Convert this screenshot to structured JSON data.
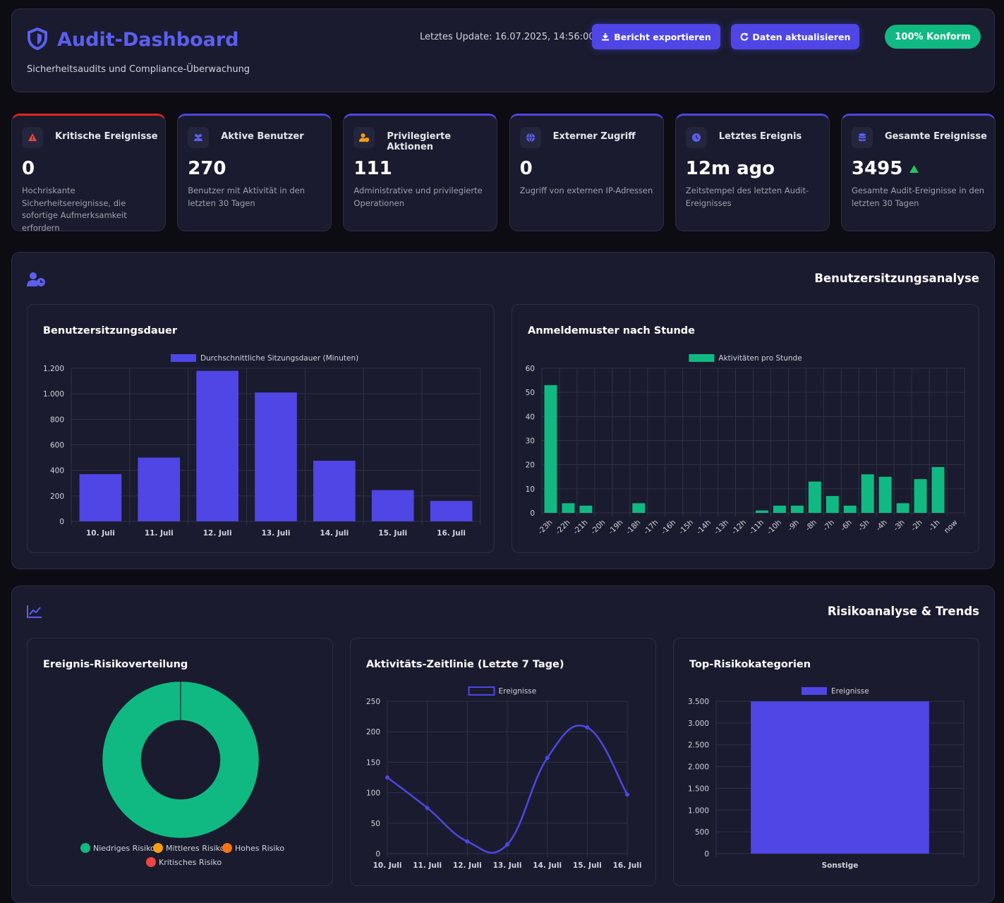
{
  "header": {
    "title": "Audit-Dashboard",
    "subtitle": "Sicherheitsaudits und Compliance-Überwachung",
    "last_update": "Letztes Update: 16.07.2025, 14:56:00",
    "buttons": [
      "Bericht exportieren",
      "Daten aktualisieren"
    ],
    "badge": "100% Konform"
  },
  "cards": [
    {
      "title": "Kritische Ereignisse",
      "value": 0,
      "desc": "Hochriskante Sicherheitsereignisse, die sofortige Aufmerksamkeit erfordern"
    },
    {
      "title": "Aktive Benutzer",
      "value": 270,
      "desc": "Benutzer mit Aktivität in den letzten 30 Tagen"
    },
    {
      "title": "Privilegierte Aktionen",
      "value": 111,
      "desc": "Administrative und privilegierte Operationen"
    },
    {
      "title": "Externer Zugriff",
      "value": 0,
      "desc": "Zugriff von externen IP-Adressen"
    },
    {
      "title": "Letztes Ereignis",
      "value": "12m ago",
      "desc": "Zeitstempel des letzten Audit-Ereignisses"
    },
    {
      "title": "Gesamte Ereignisse",
      "value": 3495,
      "desc": "Gesamte Audit-Ereignisse in den letzten 30 Tagen"
    }
  ],
  "sections": [
    "Benutzersitzungsanalyse",
    "Risikoanalyse & Trends"
  ],
  "chart_data": [
    {
      "type": "bar",
      "title": "Benutzersitzungsdauer",
      "categories": [
        "10. Juli",
        "11. Juli",
        "12. Juli",
        "13. Juli",
        "14. Juli",
        "15. Juli",
        "16. Juli"
      ],
      "series": [
        {
          "name": "Durchschnittliche Sitzungsdauer (Minuten)",
          "color": "#4f46e5",
          "values": [
            370,
            500,
            1180,
            1010,
            475,
            245,
            160
          ]
        }
      ],
      "ylim": [
        0,
        1200
      ],
      "yticks": [
        0,
        200,
        400,
        600,
        800,
        {
          "value": 1000,
          "label": "1.000"
        },
        {
          "value": 1200,
          "label": "1.200"
        }
      ],
      "grid": true,
      "legend": "top"
    },
    {
      "type": "bar",
      "title": "Anmeldemuster nach Stunde",
      "categories": [
        "-23h",
        "-22h",
        "-21h",
        "-20h",
        "-19h",
        "-18h",
        "-17h",
        "-16h",
        "-15h",
        "-14h",
        "-13h",
        "-12h",
        "-11h",
        "-10h",
        "-9h",
        "-8h",
        "-7h",
        "-6h",
        "-5h",
        "-4h",
        "-3h",
        "-2h",
        "-1h",
        "now"
      ],
      "series": [
        {
          "name": "Aktivitäten pro Stunde",
          "color": "#10b981",
          "values": [
            53,
            4,
            3,
            0,
            0,
            4,
            0,
            0,
            0,
            0,
            0,
            0,
            1,
            3,
            3,
            13,
            7,
            3,
            16,
            15,
            4,
            14,
            19,
            0
          ]
        }
      ],
      "ylim": [
        0,
        60
      ],
      "yticks": [
        0,
        10,
        20,
        30,
        40,
        50,
        60
      ],
      "grid": true,
      "legend": "top",
      "rotate_labels": true
    },
    {
      "type": "doughnut",
      "title": "Ereignis-Risikoverteilung",
      "categories": [
        "Niedriges Risiko",
        "Mittleres Risiko",
        "Hohes Risiko",
        "Kritisches Risiko"
      ],
      "values": [
        3493,
        2,
        0,
        0
      ],
      "colors": [
        "#10b981",
        "#f59e0b",
        "#f97316",
        "#ef4444"
      ],
      "legend": "bottom"
    },
    {
      "type": "line",
      "title": "Aktivitäts-Zeitlinie (Letzte 7 Tage)",
      "categories": [
        "10. Juli",
        "11. Juli",
        "12. Juli",
        "13. Juli",
        "14. Juli",
        "15. Juli",
        "16. Juli"
      ],
      "series": [
        {
          "name": "Ereignisse",
          "color": "#4f46e5",
          "values": [
            125,
            75,
            20,
            15,
            157,
            207,
            97
          ]
        }
      ],
      "ylim": [
        0,
        250
      ],
      "yticks": [
        0,
        50,
        100,
        150,
        200,
        250
      ],
      "grid": true,
      "legend": "top"
    },
    {
      "type": "bar",
      "title": "Top-Risikokategorien",
      "categories": [
        "Sonstige"
      ],
      "series": [
        {
          "name": "Ereignisse",
          "color": "#4f46e5",
          "values": [
            3495
          ]
        }
      ],
      "ylim": [
        0,
        3500
      ],
      "yticks": [
        0,
        500,
        {
          "value": 1000,
          "label": "1.000"
        },
        {
          "value": 1500,
          "label": "1.500"
        },
        {
          "value": 2000,
          "label": "2.000"
        },
        {
          "value": 2500,
          "label": "2.500"
        },
        {
          "value": 3000,
          "label": "3.000"
        },
        {
          "value": 3500,
          "label": "3.500"
        }
      ],
      "grid": true,
      "legend": "top"
    }
  ]
}
